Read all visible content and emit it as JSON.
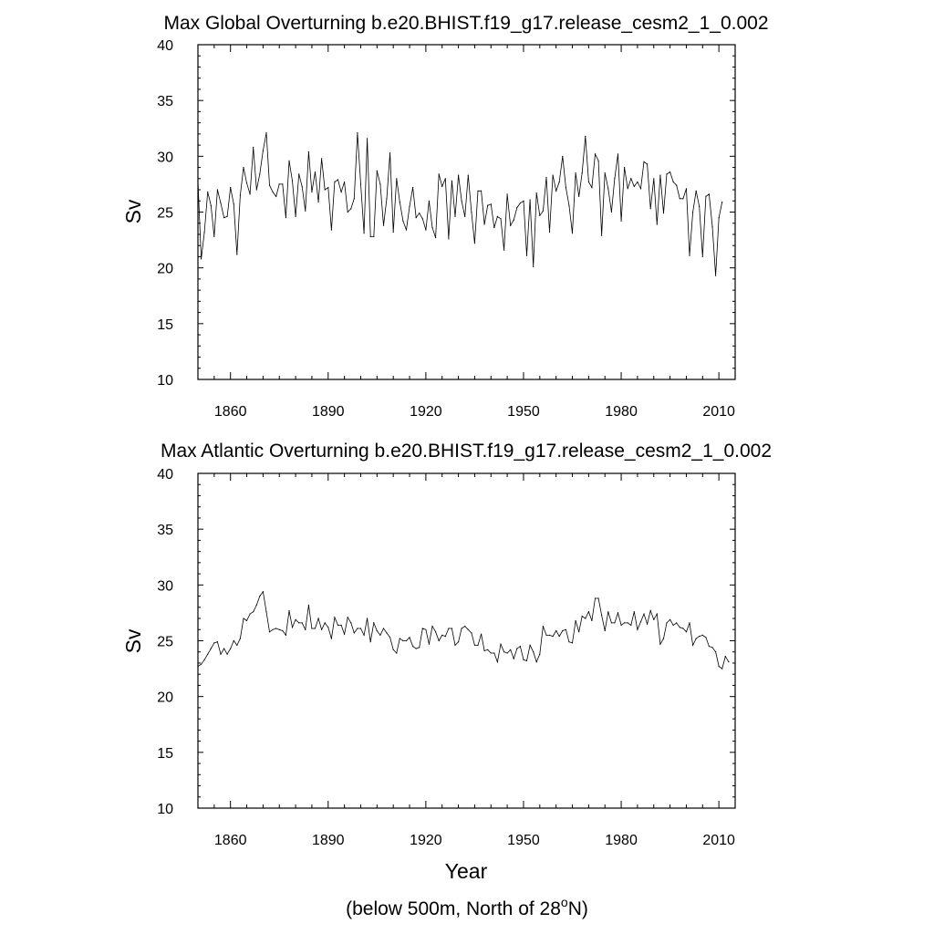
{
  "chart_data": [
    {
      "type": "line",
      "title": "Max Global Overturning b.e20.BHIST.f19_g17.release_cesm2_1_0.002",
      "ylabel": "Sv",
      "xlabel": "",
      "xlim": [
        1850,
        2015
      ],
      "ylim": [
        10,
        40
      ],
      "x_ticks": [
        1860,
        1890,
        1920,
        1950,
        1980,
        2010
      ],
      "y_ticks": [
        10,
        15,
        20,
        25,
        30,
        35,
        40
      ],
      "grid": false,
      "series": [
        {
          "x_start": 1850,
          "x_step": 1,
          "values": [
            27.8,
            20.8,
            23.2,
            26.8,
            25.6,
            22.8,
            27.0,
            25.8,
            24.5,
            24.6,
            27.2,
            25.7,
            21.2,
            26.5,
            29.0,
            27.6,
            26.6,
            30.8,
            27.0,
            28.4,
            30.5,
            32.1,
            27.4,
            26.8,
            26.4,
            27.5,
            27.5,
            24.5,
            29.6,
            27.8,
            24.6,
            28.4,
            27.3,
            25.1,
            30.4,
            26.8,
            28.6,
            25.9,
            29.8,
            27.0,
            27.2,
            23.4,
            27.7,
            27.9,
            26.8,
            27.7,
            25.0,
            25.3,
            26.2,
            32.1,
            27.5,
            23.1,
            31.6,
            22.8,
            22.8,
            28.7,
            27.5,
            23.8,
            26.2,
            30.3,
            23.2,
            28.0,
            25.9,
            24.2,
            23.4,
            25.5,
            27.2,
            24.5,
            24.9,
            24.4,
            23.4,
            26.0,
            23.6,
            22.7,
            28.4,
            27.3,
            28.0,
            22.6,
            27.8,
            24.6,
            28.3,
            26.0,
            24.6,
            28.3,
            25.0,
            22.2,
            26.9,
            26.9,
            23.9,
            25.6,
            25.7,
            23.6,
            24.6,
            24.4,
            21.6,
            26.6,
            23.8,
            24.3,
            25.4,
            25.8,
            26.0,
            21.1,
            26.1,
            20.1,
            26.7,
            24.7,
            25.1,
            28.1,
            23.2,
            28.3,
            26.9,
            27.7,
            30.0,
            27.2,
            25.6,
            23.1,
            28.5,
            26.4,
            28.5,
            31.8,
            27.7,
            27.2,
            30.2,
            29.6,
            22.9,
            28.5,
            27.1,
            25.0,
            28.0,
            30.2,
            24.2,
            29.0,
            27.1,
            28.0,
            27.3,
            27.7,
            27.1,
            29.5,
            29.3,
            25.3,
            28.0,
            23.9,
            28.3,
            24.9,
            28.4,
            28.6,
            27.7,
            27.4,
            26.2,
            26.2,
            27.1,
            21.1,
            25.0,
            26.9,
            25.5,
            21.0,
            26.4,
            26.6,
            23.7,
            19.3,
            24.5,
            25.9
          ]
        }
      ]
    },
    {
      "type": "line",
      "title": "Max Atlantic Overturning b.e20.BHIST.f19_g17.release_cesm2_1_0.002",
      "ylabel": "Sv",
      "xlabel": "Year",
      "xlim": [
        1850,
        2015
      ],
      "ylim": [
        10,
        40
      ],
      "x_ticks": [
        1860,
        1890,
        1920,
        1950,
        1980,
        2010
      ],
      "y_ticks": [
        10,
        15,
        20,
        25,
        30,
        35,
        40
      ],
      "grid": false,
      "series": [
        {
          "x_start": 1850,
          "x_step": 1,
          "values": [
            22.7,
            22.9,
            23.3,
            23.8,
            24.3,
            24.8,
            24.9,
            23.8,
            24.3,
            23.8,
            24.3,
            25.0,
            24.6,
            25.2,
            27.0,
            26.8,
            27.4,
            27.6,
            28.2,
            29.0,
            29.4,
            27.6,
            25.8,
            26.0,
            26.1,
            26.0,
            25.9,
            25.5,
            27.7,
            26.2,
            26.9,
            26.6,
            26.6,
            26.0,
            28.2,
            26.1,
            26.1,
            27.0,
            26.0,
            26.6,
            26.2,
            25.2,
            27.1,
            26.4,
            26.4,
            25.6,
            27.1,
            26.6,
            25.7,
            26.1,
            26.1,
            25.5,
            27.0,
            24.9,
            26.6,
            25.9,
            25.5,
            26.1,
            25.7,
            25.3,
            24.2,
            23.9,
            25.2,
            25.0,
            25.0,
            25.3,
            24.5,
            24.3,
            24.4,
            26.1,
            26.0,
            24.7,
            26.3,
            25.8,
            25.0,
            25.5,
            25.4,
            26.1,
            26.1,
            24.6,
            24.9,
            26.1,
            26.3,
            26.0,
            25.7,
            24.6,
            24.6,
            25.6,
            24.1,
            24.2,
            23.9,
            23.9,
            23.1,
            24.7,
            24.0,
            23.9,
            24.2,
            23.4,
            24.3,
            24.5,
            23.3,
            23.2,
            24.6,
            24.0,
            23.1,
            23.8,
            26.3,
            25.5,
            25.5,
            25.4,
            25.9,
            25.4,
            25.9,
            26.0,
            24.9,
            24.8,
            26.8,
            25.8,
            27.2,
            27.0,
            27.6,
            26.8,
            28.8,
            28.8,
            27.3,
            25.9,
            27.6,
            26.6,
            26.6,
            27.5,
            26.4,
            26.6,
            26.6,
            26.4,
            27.6,
            26.0,
            26.7,
            27.4,
            26.5,
            27.7,
            26.9,
            27.4,
            24.7,
            25.2,
            26.6,
            26.9,
            26.4,
            26.6,
            26.2,
            26.1,
            25.8,
            26.6,
            24.6,
            25.2,
            25.4,
            25.5,
            25.3,
            24.5,
            24.4,
            24.0,
            22.7,
            22.5,
            23.6,
            23.1
          ]
        }
      ]
    }
  ],
  "footnote": {
    "prefix": "(below 500m, North of 28",
    "superscript": "o",
    "suffix": "N)"
  },
  "colors": {
    "line": "#000000",
    "axis": "#000000",
    "background": "#ffffff"
  }
}
